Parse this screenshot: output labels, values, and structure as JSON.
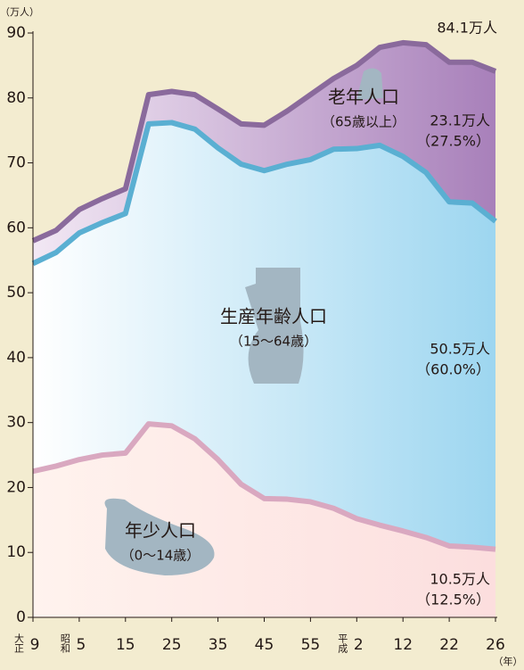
{
  "chart_data": {
    "type": "stacked_area",
    "y_axis_label": "（万人）",
    "x_axis_label": "（年）",
    "categories": [
      "9",
      null,
      "5",
      null,
      "15",
      null,
      "25",
      null,
      "35",
      null,
      "45",
      null,
      "55",
      null,
      "2",
      null,
      "12",
      null,
      "22",
      null,
      "26"
    ],
    "era_labels": [
      "大正",
      null,
      "昭和",
      null,
      null,
      null,
      null,
      null,
      null,
      null,
      null,
      null,
      null,
      null,
      "平成",
      null,
      null,
      null,
      null,
      null,
      null
    ],
    "ylim": [
      0,
      90
    ],
    "yticks": [
      0,
      10,
      20,
      30,
      40,
      50,
      60,
      70,
      80,
      90
    ],
    "series": [
      {
        "name": "年少人口",
        "sub_label": "（0〜14歳）",
        "color": "#d9a8c0",
        "fill": "#fde6e4",
        "values": [
          22.5,
          23.3,
          24.3,
          25,
          25.3,
          29.8,
          29.5,
          27.5,
          24.3,
          20.5,
          18.3,
          18.2,
          17.8,
          16.8,
          15.2,
          14.2,
          13.3,
          12.3,
          11,
          10.8,
          10.5
        ],
        "value_labels": [
          null,
          null,
          null,
          null,
          null,
          null,
          null,
          null,
          null,
          null,
          null,
          null,
          null,
          null,
          null,
          null,
          null,
          null,
          null,
          null,
          "10.5万人"
        ],
        "share_label": "（12.5%）"
      },
      {
        "name": "生産年齢人口",
        "sub_label": "（15〜64歳）",
        "color": "#5aafd2",
        "fill": "#9dd6f0",
        "values": [
          32,
          32.9,
          34.9,
          35.8,
          36.9,
          46.2,
          46.7,
          47.7,
          48,
          49.3,
          50.5,
          51.6,
          52.7,
          55.3,
          57,
          58.5,
          57.7,
          56.2,
          53,
          53,
          50.5
        ],
        "value_labels": [
          null,
          null,
          null,
          null,
          null,
          null,
          null,
          null,
          null,
          null,
          null,
          null,
          null,
          null,
          null,
          null,
          null,
          null,
          null,
          null,
          "50.5万人"
        ],
        "share_label": "（60.0%）"
      },
      {
        "name": "老年人口",
        "sub_label": "（65歳以上）",
        "color": "#8a6a9c",
        "fill": "#a880ba",
        "values": [
          3.5,
          3.4,
          3.6,
          3.7,
          3.8,
          4.5,
          4.8,
          5.3,
          6,
          6.2,
          7,
          8.2,
          10,
          10.9,
          12.8,
          15.1,
          17.5,
          19.7,
          21.5,
          21.7,
          23.1
        ],
        "value_labels": [
          null,
          null,
          null,
          null,
          null,
          null,
          null,
          null,
          null,
          null,
          null,
          null,
          null,
          null,
          null,
          null,
          null,
          null,
          null,
          null,
          "23.1万人"
        ],
        "share_label": "（27.5%）"
      }
    ],
    "total": {
      "value": 84.1,
      "label": "84.1万人"
    }
  }
}
